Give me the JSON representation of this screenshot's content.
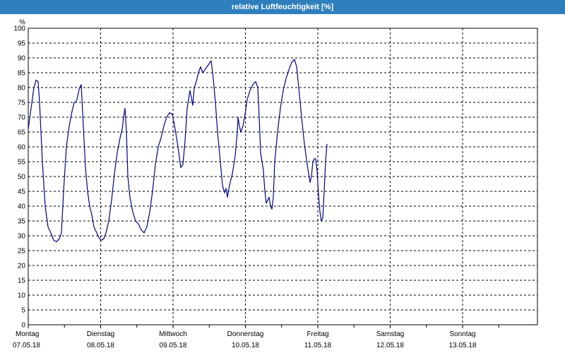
{
  "window": {
    "title": "relative Luftfeuchtigkeit [%]"
  },
  "chart_data": {
    "type": "line",
    "title": "relative Luftfeuchtigkeit [%]",
    "ylabel": "%",
    "ylim": [
      0,
      100
    ],
    "ytick_step": 5,
    "grid": true,
    "x_ticks": [
      {
        "day": "Montag",
        "date": "07.05.18",
        "t": 0
      },
      {
        "day": "Dienstag",
        "date": "08.05.18",
        "t": 1
      },
      {
        "day": "Mittwoch",
        "date": "09.05.18",
        "t": 2
      },
      {
        "day": "Donnerstag",
        "date": "10.05.18",
        "t": 3
      },
      {
        "day": "Freitag",
        "date": "11.05.18",
        "t": 4
      },
      {
        "day": "Samstag",
        "date": "12.05.18",
        "t": 5
      },
      {
        "day": "Sonntag",
        "date": "13.05.18",
        "t": 6
      }
    ],
    "xlim": [
      0,
      6.8
    ],
    "series": [
      {
        "color": "#00008b",
        "points": [
          [
            0.0,
            66
          ],
          [
            0.039,
            73
          ],
          [
            0.078,
            80
          ],
          [
            0.107,
            82.5
          ],
          [
            0.137,
            82
          ],
          [
            0.156,
            75
          ],
          [
            0.195,
            55
          ],
          [
            0.234,
            40
          ],
          [
            0.273,
            33
          ],
          [
            0.312,
            31
          ],
          [
            0.351,
            28.5
          ],
          [
            0.39,
            28
          ],
          [
            0.429,
            29
          ],
          [
            0.459,
            31
          ],
          [
            0.488,
            45
          ],
          [
            0.527,
            60
          ],
          [
            0.566,
            67
          ],
          [
            0.605,
            72
          ],
          [
            0.634,
            75
          ],
          [
            0.654,
            75
          ],
          [
            0.673,
            76
          ],
          [
            0.703,
            79.5
          ],
          [
            0.732,
            81
          ],
          [
            0.761,
            67
          ],
          [
            0.79,
            53
          ],
          [
            0.82,
            45
          ],
          [
            0.849,
            40
          ],
          [
            0.878,
            37
          ],
          [
            0.907,
            33
          ],
          [
            0.937,
            31.5
          ],
          [
            0.966,
            30
          ],
          [
            0.985,
            29
          ],
          [
            1.01,
            28.5
          ],
          [
            1.044,
            29
          ],
          [
            1.073,
            31
          ],
          [
            1.112,
            35
          ],
          [
            1.151,
            42
          ],
          [
            1.19,
            51
          ],
          [
            1.229,
            58
          ],
          [
            1.268,
            63
          ],
          [
            1.298,
            66
          ],
          [
            1.317,
            70
          ],
          [
            1.337,
            73
          ],
          [
            1.356,
            65
          ],
          [
            1.376,
            50
          ],
          [
            1.405,
            43
          ],
          [
            1.444,
            38
          ],
          [
            1.483,
            35
          ],
          [
            1.522,
            34
          ],
          [
            1.561,
            32
          ],
          [
            1.6,
            31
          ],
          [
            1.639,
            33
          ],
          [
            1.678,
            38
          ],
          [
            1.717,
            45
          ],
          [
            1.756,
            54
          ],
          [
            1.795,
            60
          ],
          [
            1.834,
            63
          ],
          [
            1.873,
            67
          ],
          [
            1.912,
            70
          ],
          [
            1.951,
            71.5
          ],
          [
            1.99,
            71
          ],
          [
            2.029,
            66
          ],
          [
            2.068,
            60
          ],
          [
            2.107,
            53
          ],
          [
            2.137,
            54
          ],
          [
            2.166,
            62
          ],
          [
            2.195,
            73
          ],
          [
            2.234,
            79
          ],
          [
            2.273,
            74
          ],
          [
            2.293,
            80
          ],
          [
            2.322,
            82
          ],
          [
            2.351,
            85
          ],
          [
            2.38,
            87
          ],
          [
            2.41,
            85
          ],
          [
            2.439,
            86
          ],
          [
            2.468,
            87
          ],
          [
            2.498,
            88
          ],
          [
            2.527,
            89
          ],
          [
            2.556,
            83
          ],
          [
            2.585,
            75
          ],
          [
            2.615,
            65
          ],
          [
            2.654,
            55
          ],
          [
            2.683,
            47
          ],
          [
            2.712,
            44.5
          ],
          [
            2.732,
            46
          ],
          [
            2.751,
            43
          ],
          [
            2.78,
            47
          ],
          [
            2.82,
            51
          ],
          [
            2.859,
            57
          ],
          [
            2.888,
            65
          ],
          [
            2.898,
            70
          ],
          [
            2.917,
            67
          ],
          [
            2.937,
            65
          ],
          [
            2.966,
            67
          ],
          [
            2.995,
            71
          ],
          [
            3.024,
            76
          ],
          [
            3.063,
            79
          ],
          [
            3.102,
            81
          ],
          [
            3.141,
            82
          ],
          [
            3.171,
            80
          ],
          [
            3.19,
            70
          ],
          [
            3.21,
            58
          ],
          [
            3.229,
            55
          ],
          [
            3.249,
            52
          ],
          [
            3.268,
            45
          ],
          [
            3.288,
            41
          ],
          [
            3.307,
            42
          ],
          [
            3.327,
            43
          ],
          [
            3.346,
            40
          ],
          [
            3.366,
            39
          ],
          [
            3.385,
            43
          ],
          [
            3.405,
            55
          ],
          [
            3.444,
            65
          ],
          [
            3.483,
            73
          ],
          [
            3.522,
            79
          ],
          [
            3.561,
            83
          ],
          [
            3.6,
            86
          ],
          [
            3.639,
            88.5
          ],
          [
            3.678,
            89.5
          ],
          [
            3.707,
            87
          ],
          [
            3.737,
            80
          ],
          [
            3.776,
            70
          ],
          [
            3.815,
            61
          ],
          [
            3.854,
            54
          ],
          [
            3.893,
            48
          ],
          [
            3.912,
            50
          ],
          [
            3.932,
            55
          ],
          [
            3.951,
            56
          ],
          [
            3.971,
            56
          ],
          [
            3.99,
            52
          ],
          [
            4.01,
            44
          ],
          [
            4.029,
            38
          ],
          [
            4.049,
            35
          ],
          [
            4.068,
            36
          ],
          [
            4.088,
            45
          ],
          [
            4.107,
            55
          ],
          [
            4.127,
            61
          ]
        ]
      }
    ]
  }
}
